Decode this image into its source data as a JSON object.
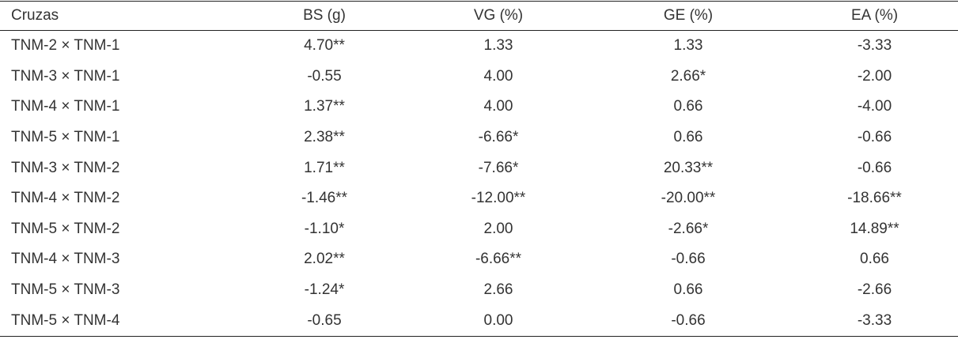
{
  "table": {
    "header": [
      "Cruzas",
      "BS (g)",
      "VG (%)",
      "GE (%)",
      "EA (%)"
    ],
    "rows": [
      [
        "TNM-2 × TNM-1",
        "4.70**",
        "1.33",
        "1.33",
        "-3.33"
      ],
      [
        "TNM-3 × TNM-1",
        "-0.55",
        "4.00",
        "2.66*",
        "-2.00"
      ],
      [
        "TNM-4 × TNM-1",
        "1.37**",
        "4.00",
        "0.66",
        "-4.00"
      ],
      [
        "TNM-5 × TNM-1",
        "2.38**",
        "-6.66*",
        "0.66",
        "-0.66"
      ],
      [
        "TNM-3 × TNM-2",
        "1.71**",
        "-7.66*",
        "20.33**",
        "-0.66"
      ],
      [
        "TNM-4 × TNM-2",
        "-1.46**",
        "-12.00**",
        "-20.00**",
        "-18.66**"
      ],
      [
        "TNM-5 × TNM-2",
        "-1.10*",
        "2.00",
        "-2.66*",
        "14.89**"
      ],
      [
        "TNM-4 × TNM-3",
        "2.02**",
        "-6.66**",
        "-0.66",
        "0.66"
      ],
      [
        "TNM-5 × TNM-3",
        "-1.24*",
        "2.66",
        "0.66",
        "-2.66"
      ],
      [
        "TNM-5 × TNM-4",
        "-0.65",
        "0.00",
        "-0.66",
        "-3.33"
      ]
    ]
  }
}
